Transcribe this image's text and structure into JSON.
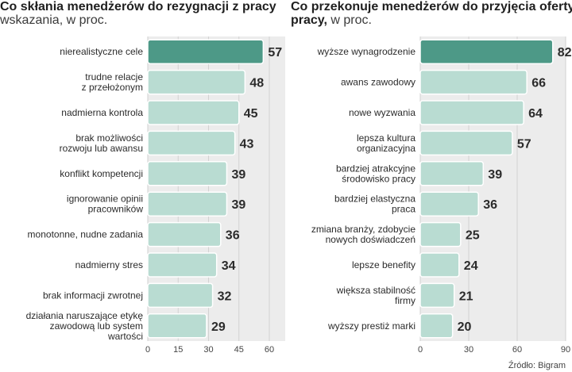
{
  "source": "Źródło: Bigram",
  "chart_data": [
    {
      "type": "bar",
      "title": "Co  skłania menedżerów do rezygnacji z pracy",
      "subtitle": "wskazania, w proc.",
      "categories": [
        "nierealistyczne cele",
        "trudne relacje\nz przełożonym",
        "nadmierna kontrola",
        "brak możliwości\nrozwoju lub awansu",
        "konflikt kompetencji",
        "ignorowanie opinii\npracowników",
        "monotonne, nudne zadania",
        "nadmierny stres",
        "brak informacji zwrotnej",
        "działania naruszające etykę\nzawodową lub system\nwartości"
      ],
      "values": [
        57,
        48,
        45,
        43,
        39,
        39,
        36,
        34,
        32,
        29
      ],
      "xlim": [
        0,
        60
      ],
      "xticks": [
        0,
        15,
        30,
        45,
        60
      ],
      "highlight_index": 0,
      "colors": {
        "highlight": "#4d9987",
        "bar": "#b9dcd2",
        "track": "#ececec"
      }
    },
    {
      "type": "bar",
      "title": "Co przekonuje menedżerów do przyjęcia oferty\npracy,",
      "subtitle": "w proc.",
      "categories": [
        "wyższe wynagrodzenie",
        "awans zawodowy",
        "nowe wyzwania",
        "lepsza kultura\norganizacyjna",
        "bardziej atrakcyjne\nśrodowisko pracy",
        "bardziej elastyczna\npraca",
        "zmiana branży, zdobycie\nnowych doświadczeń",
        "lepsze benefity",
        "większa stabilność\nfirmy",
        "wyższy  prestiż marki"
      ],
      "values": [
        82,
        66,
        64,
        57,
        39,
        36,
        25,
        24,
        21,
        20
      ],
      "xlim": [
        0,
        90
      ],
      "xticks": [
        0,
        30,
        60,
        90
      ],
      "highlight_index": 0,
      "colors": {
        "highlight": "#4d9987",
        "bar": "#b9dcd2",
        "track": "#ececec"
      }
    }
  ]
}
